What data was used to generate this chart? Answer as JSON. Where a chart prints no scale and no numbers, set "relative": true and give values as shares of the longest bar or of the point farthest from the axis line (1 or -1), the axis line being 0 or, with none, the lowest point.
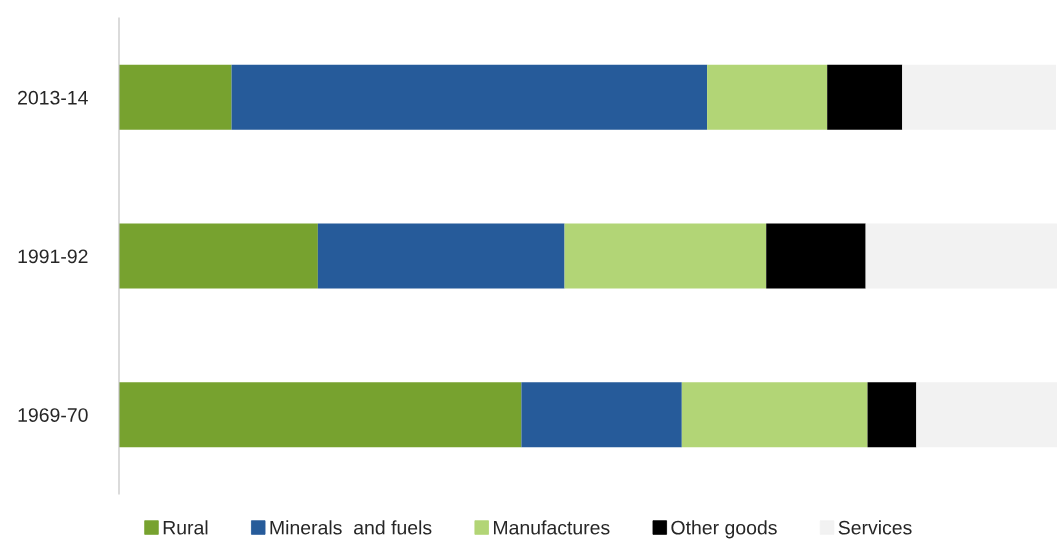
{
  "chart_data": {
    "type": "bar",
    "orientation": "horizontal",
    "stacked": true,
    "relative": true,
    "categories": [
      "2013-14",
      "1991-92",
      "1969-70"
    ],
    "series": [
      {
        "name": "Rural",
        "color": "#77a22f",
        "values": [
          0.12,
          0.212,
          0.429
        ]
      },
      {
        "name": "Minerals  and fuels",
        "color": "#265b9a",
        "values": [
          0.507,
          0.263,
          0.171
        ]
      },
      {
        "name": "Manufactures",
        "color": "#b2d576",
        "values": [
          0.128,
          0.215,
          0.198
        ]
      },
      {
        "name": "Other goods",
        "color": "#000000",
        "values": [
          0.08,
          0.106,
          0.052
        ]
      },
      {
        "name": "Services",
        "color": "#f2f2f2",
        "values": [
          0.164,
          0.204,
          0.15
        ]
      }
    ],
    "legend": "bottom",
    "grid": false
  }
}
